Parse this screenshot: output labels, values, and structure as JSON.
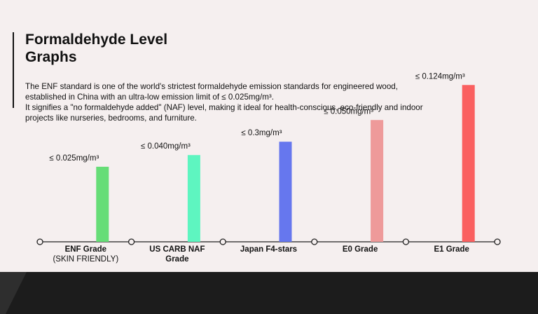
{
  "page": {
    "title_line1": "Formaldehyde Level",
    "title_line2": "Graphs",
    "description_line1": "The ENF standard is one of the world's strictest formaldehyde emission standards for engineered wood, established in China with an ultra-low emission limit of ≤ 0.025mg/m³.",
    "description_line2": "It signifies a \"no formaldehyde added\" (NAF) level, making it ideal for health-conscious, eco-friendly and indoor projects like nurseries, bedrooms, and furniture."
  },
  "chart_data": {
    "type": "bar",
    "categories": [
      {
        "label": "ENF Grade",
        "sublabel": "(SKIN FRIENDLY)"
      },
      {
        "label": "US CARB NAF Grade",
        "sublabel": ""
      },
      {
        "label": "Japan F4-stars",
        "sublabel": ""
      },
      {
        "label": "E0 Grade",
        "sublabel": ""
      },
      {
        "label": "E1 Grade",
        "sublabel": ""
      }
    ],
    "values": [
      0.025,
      0.04,
      0.3,
      0.05,
      0.124
    ],
    "data_labels": [
      "≤ 0.025mg/m³",
      "≤ 0.040mg/m³",
      "≤ 0.3mg/m³",
      "≤ 0.050mg/m³",
      "≤ 0.124mg/m³"
    ],
    "bar_colors": [
      "#66dd77",
      "#5ef5c0",
      "#6677ee",
      "#ee9a9a",
      "#fa6060"
    ],
    "scale_note": "bar heights are illustrative and not proportional to the printed values",
    "visual_levels": [
      0.45,
      0.52,
      0.6,
      0.73,
      0.94
    ],
    "axis_color": "#222222",
    "grid": false,
    "legend": "none"
  }
}
